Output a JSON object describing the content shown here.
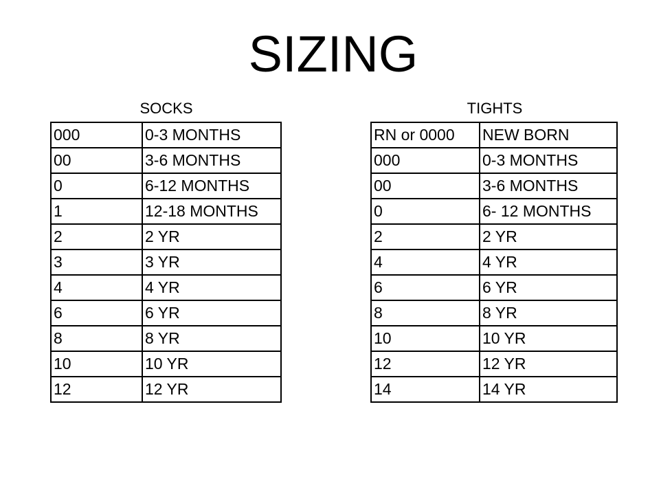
{
  "title": "SIZING",
  "socks": {
    "caption": "SOCKS",
    "rows": [
      [
        "000",
        "0-3 MONTHS"
      ],
      [
        "00",
        "3-6 MONTHS"
      ],
      [
        "0",
        "6-12 MONTHS"
      ],
      [
        "1",
        "12-18 MONTHS"
      ],
      [
        "2",
        "2 YR"
      ],
      [
        "3",
        "3 YR"
      ],
      [
        "4",
        "4 YR"
      ],
      [
        "6",
        "6 YR"
      ],
      [
        "8",
        "8 YR"
      ],
      [
        "10",
        "10 YR"
      ],
      [
        "12",
        "12 YR"
      ]
    ]
  },
  "tights": {
    "caption": "TIGHTS",
    "rows": [
      [
        "RN or 0000",
        "NEW BORN"
      ],
      [
        "000",
        "0-3 MONTHS"
      ],
      [
        "00",
        "3-6 MONTHS"
      ],
      [
        "0",
        "6- 12 MONTHS"
      ],
      [
        "2",
        "2 YR"
      ],
      [
        "4",
        "4 YR"
      ],
      [
        "6",
        "6 YR"
      ],
      [
        "8",
        "8 YR"
      ],
      [
        "10",
        "10 YR"
      ],
      [
        "12",
        "12 YR"
      ],
      [
        "14",
        "14 YR"
      ]
    ]
  }
}
